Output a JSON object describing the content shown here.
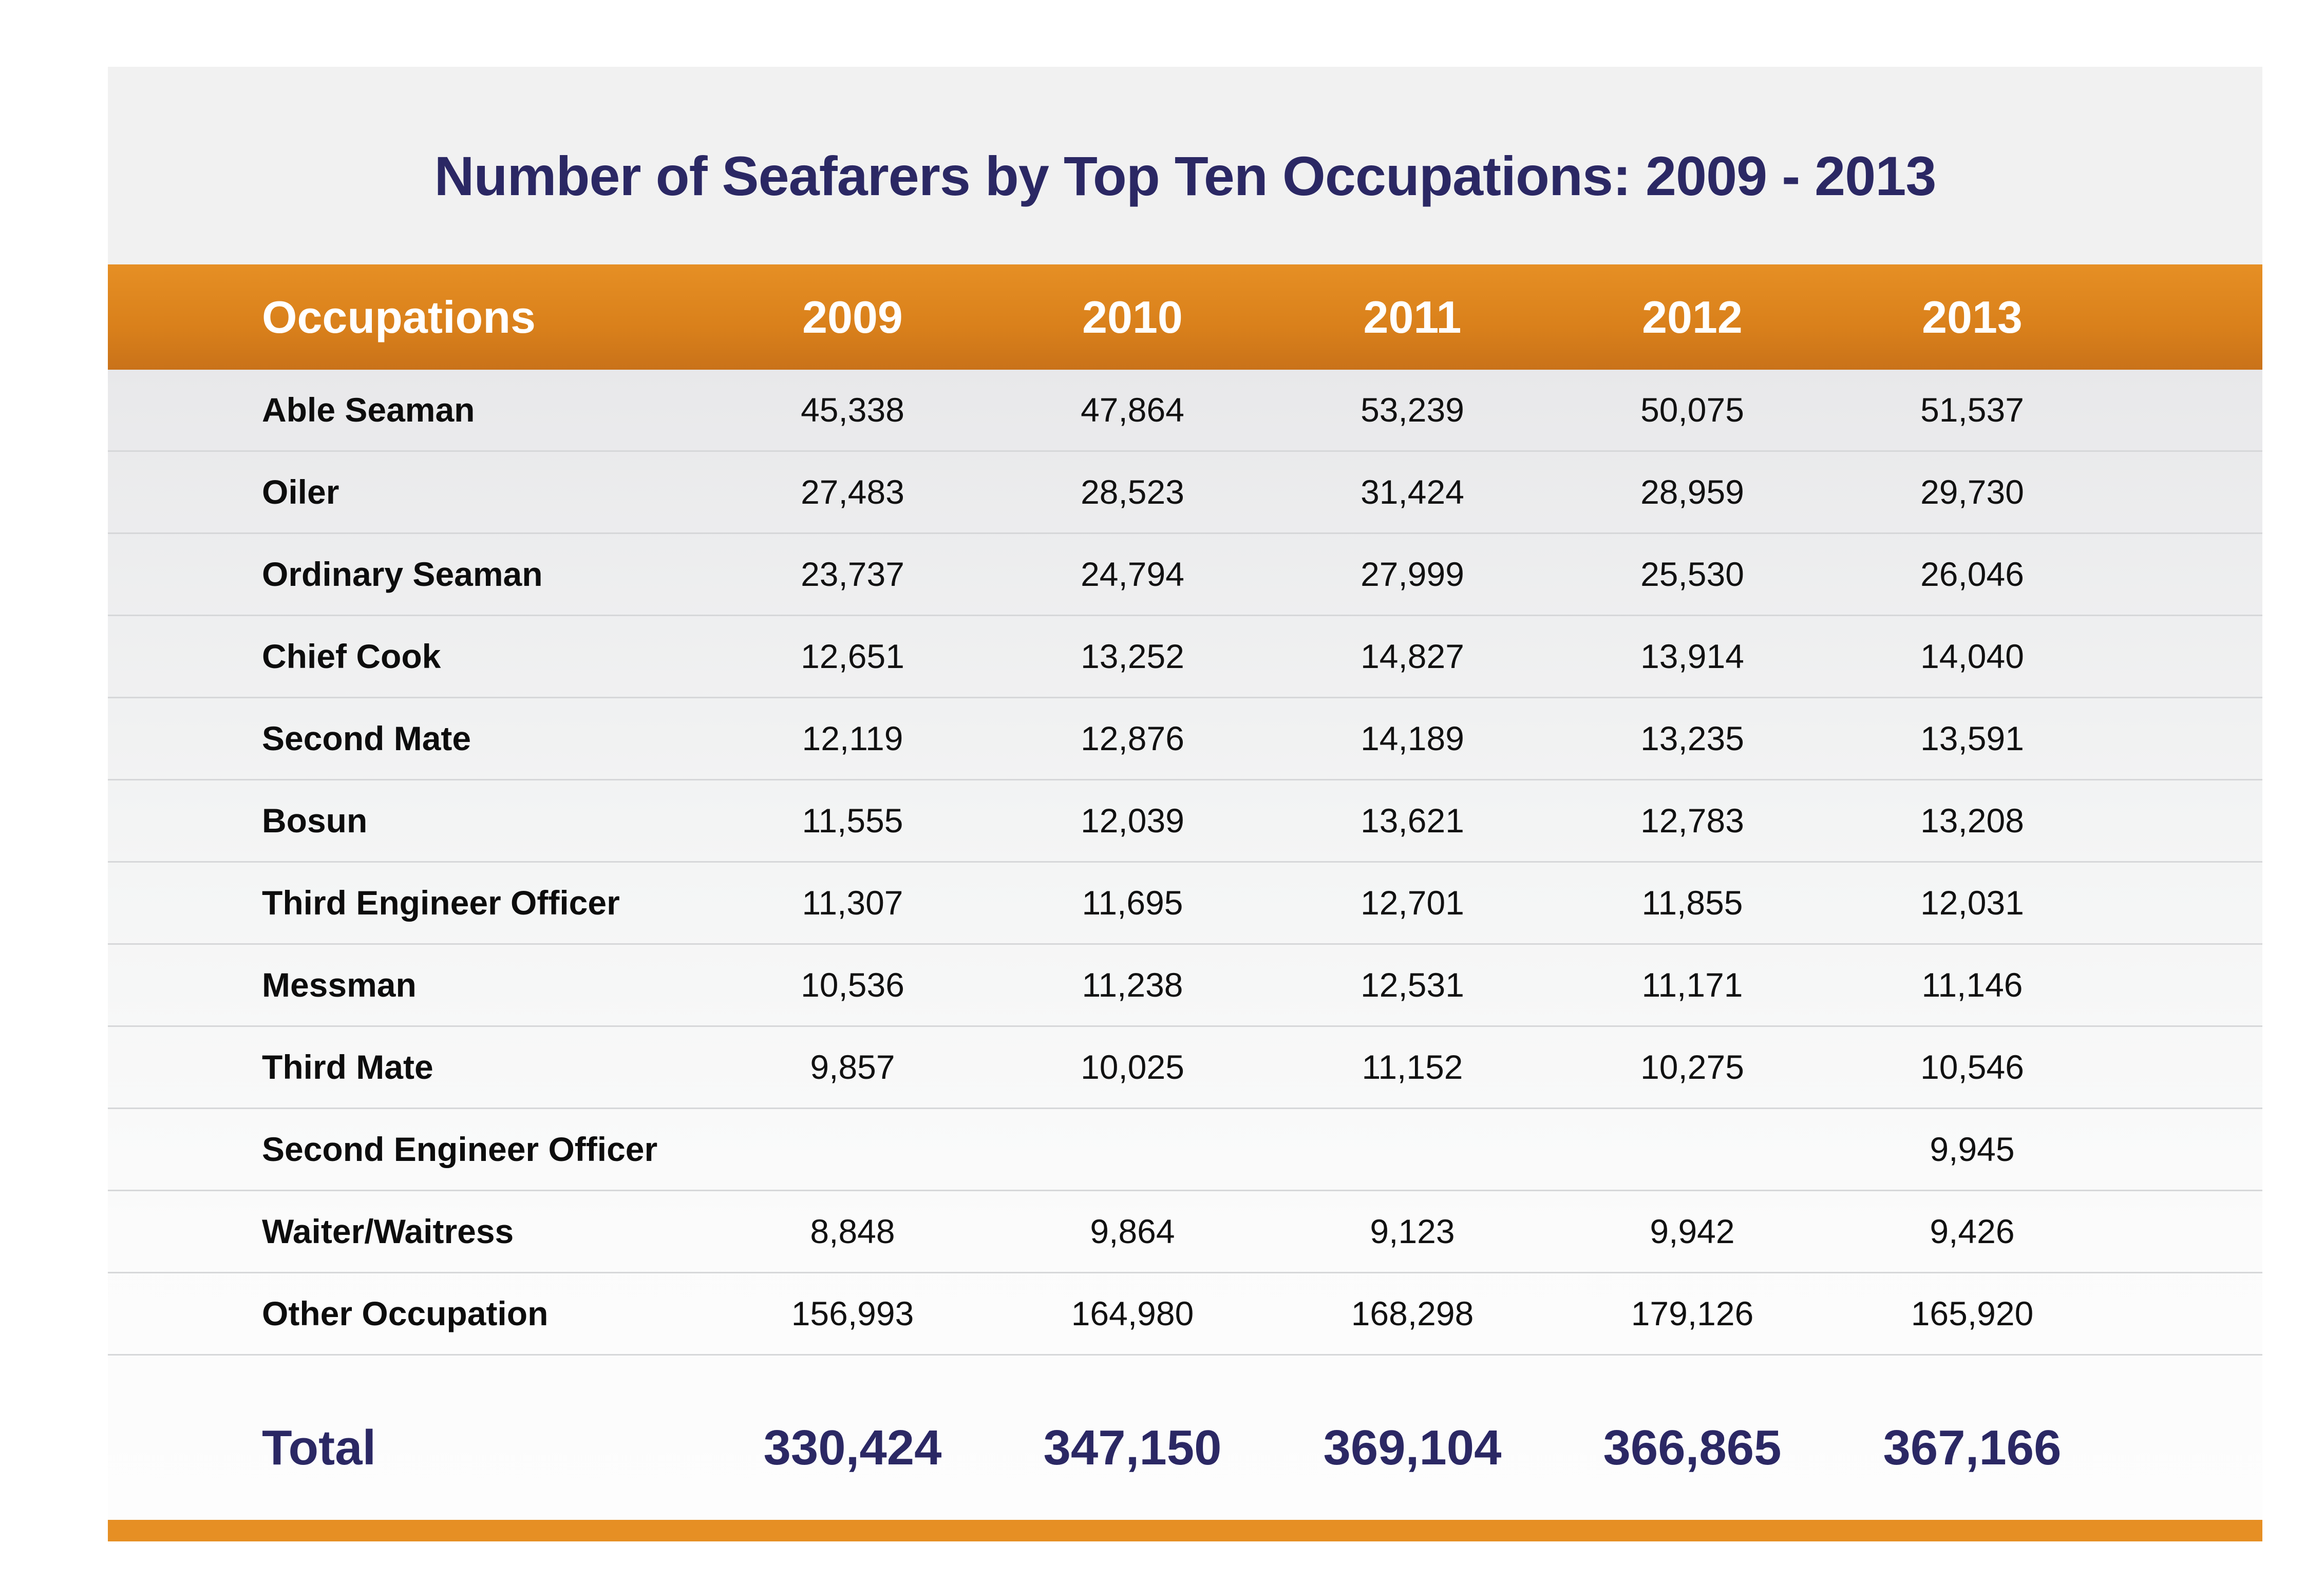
{
  "chart_data": {
    "type": "table",
    "title": "Number of Seafarers by Top Ten Occupations: 2009 - 2013",
    "header": {
      "label": "Occupations",
      "years": [
        "2009",
        "2010",
        "2011",
        "2012",
        "2013"
      ]
    },
    "rows": [
      {
        "label": "Able Seaman",
        "values": [
          "45,338",
          "47,864",
          "53,239",
          "50,075",
          "51,537"
        ]
      },
      {
        "label": "Oiler",
        "values": [
          "27,483",
          "28,523",
          "31,424",
          "28,959",
          "29,730"
        ]
      },
      {
        "label": "Ordinary Seaman",
        "values": [
          "23,737",
          "24,794",
          "27,999",
          "25,530",
          "26,046"
        ]
      },
      {
        "label": "Chief Cook",
        "values": [
          "12,651",
          "13,252",
          "14,827",
          "13,914",
          "14,040"
        ]
      },
      {
        "label": "Second Mate",
        "values": [
          "12,119",
          "12,876",
          "14,189",
          "13,235",
          "13,591"
        ]
      },
      {
        "label": "Bosun",
        "values": [
          "11,555",
          "12,039",
          "13,621",
          "12,783",
          "13,208"
        ]
      },
      {
        "label": "Third Engineer Officer",
        "values": [
          "11,307",
          "11,695",
          "12,701",
          "11,855",
          "12,031"
        ]
      },
      {
        "label": "Messman",
        "values": [
          "10,536",
          "11,238",
          "12,531",
          "11,171",
          "11,146"
        ]
      },
      {
        "label": "Third Mate",
        "values": [
          "9,857",
          "10,025",
          "11,152",
          "10,275",
          "10,546"
        ]
      },
      {
        "label": "Second Engineer Officer",
        "values": [
          "",
          "",
          "",
          "",
          "9,945"
        ]
      },
      {
        "label": "Waiter/Waitress",
        "values": [
          "8,848",
          "9,864",
          "9,123",
          "9,942",
          "9,426"
        ]
      },
      {
        "label": "Other Occupation",
        "values": [
          "156,993",
          "164,980",
          "168,298",
          "179,126",
          "165,920"
        ]
      }
    ],
    "total": {
      "label": "Total",
      "values": [
        "330,424",
        "347,150",
        "369,104",
        "366,865",
        "367,166"
      ]
    }
  },
  "colors": {
    "title": "#2b2864",
    "header_bar": "#e68f24",
    "total_text": "#2b2864",
    "bottom_bar": "#e68f24"
  }
}
